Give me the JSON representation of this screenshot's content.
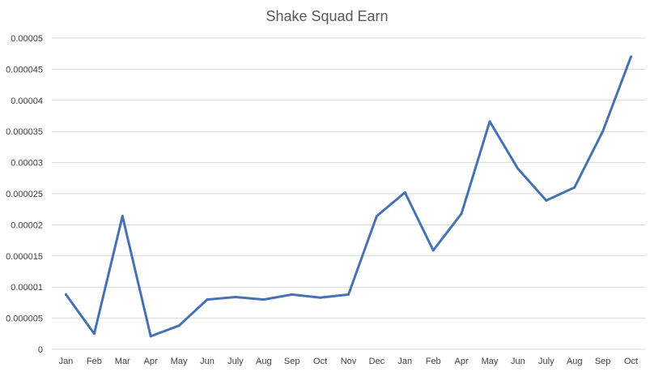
{
  "chart_data": {
    "type": "line",
    "title": "Shake Squad Earn",
    "xlabel": "",
    "ylabel": "",
    "categories": [
      "Jan",
      "Feb",
      "Mar",
      "Apr",
      "May",
      "Jun",
      "July",
      "Aug",
      "Sep",
      "Oct",
      "Nov",
      "Dec",
      "Jan",
      "Feb",
      "Apr",
      "May",
      "Jun",
      "July",
      "Aug",
      "Sep",
      "Oct"
    ],
    "series": [
      {
        "values": [
          8.8e-06,
          2.5e-06,
          2.14e-05,
          2.1e-06,
          3.8e-06,
          8e-06,
          8.4e-06,
          8e-06,
          8.8e-06,
          8.3e-06,
          8.8e-06,
          2.14e-05,
          2.52e-05,
          1.59e-05,
          2.18e-05,
          3.66e-05,
          2.9e-05,
          2.39e-05,
          2.6e-05,
          3.5e-05,
          4.7e-05
        ],
        "color": "#4672b4"
      }
    ],
    "yticks": [
      "0",
      "0.000005",
      "0.00001",
      "0.000015",
      "0.00002",
      "0.000025",
      "0.00003",
      "0.000035",
      "0.00004",
      "0.000045",
      "0.00005"
    ],
    "ylim": [
      0,
      5e-05
    ],
    "grid": true,
    "legend": "none"
  }
}
